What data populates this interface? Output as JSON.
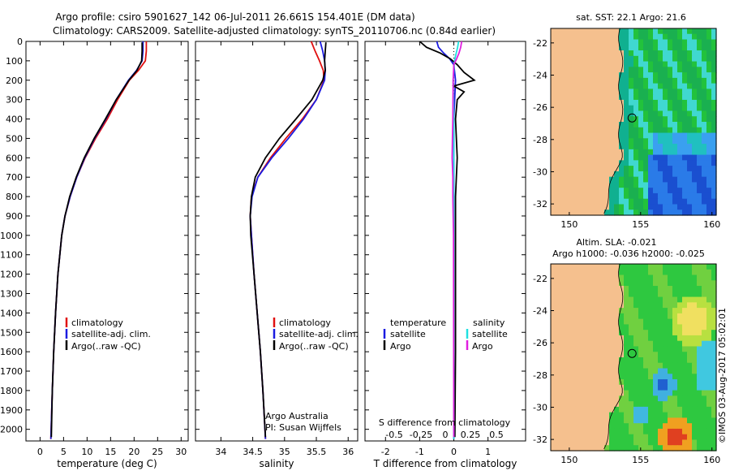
{
  "header": {
    "line1": "Argo profile: csiro 5901627_142 06-Jul-2011 26.661S 154.401E (DM data)",
    "line2": "Climatology: CARS2009. Satellite-adjusted climatology: synTS_20110706.nc (0.84d earlier)"
  },
  "credit": {
    "line1": "Argo Australia",
    "line2": "PI: Susan Wijffels",
    "stamp": "©IMOS 03-Aug-2017 05:02:01"
  },
  "colors": {
    "clim": "#e01010",
    "sat": "#1a1ae0",
    "argo": "#000000",
    "sat_s": "#20e0e0",
    "argo_s": "#e020e0",
    "land": "#f5c08e"
  },
  "chart_data": [
    {
      "type": "line",
      "id": "temperature",
      "xlabel": "temperature (deg C)",
      "ylabel": "",
      "xlim": [
        -3,
        31.5
      ],
      "ylim": [
        2060,
        0
      ],
      "xticks": [
        0,
        5,
        10,
        15,
        20,
        25,
        30
      ],
      "yticks": [
        0,
        100,
        200,
        300,
        400,
        500,
        600,
        700,
        800,
        900,
        1000,
        1100,
        1200,
        1300,
        1400,
        1500,
        1600,
        1700,
        1800,
        1900,
        2000
      ],
      "legend": [
        "climatology",
        "satellite-adj. clim.",
        "Argo(..raw -QC)"
      ],
      "series": [
        {
          "name": "climatology",
          "color": "clim",
          "depth": [
            0,
            50,
            100,
            150,
            200,
            300,
            400,
            500,
            600,
            700,
            800,
            900,
            1000,
            1200,
            1400,
            1600,
            1800,
            2050
          ],
          "values": [
            22.6,
            22.6,
            22.4,
            20.9,
            19.0,
            16.5,
            14.3,
            11.8,
            9.6,
            7.8,
            6.4,
            5.3,
            4.6,
            3.8,
            3.3,
            2.9,
            2.6,
            2.3
          ]
        },
        {
          "name": "satellite-adj. clim.",
          "color": "sat",
          "depth": [
            0,
            50,
            100,
            150,
            200,
            300,
            400,
            500,
            600,
            700,
            800,
            900,
            1000,
            1200,
            1400,
            1600,
            1800,
            2050
          ],
          "values": [
            21.9,
            21.9,
            21.7,
            20.5,
            18.8,
            16.2,
            14.0,
            11.6,
            9.5,
            7.8,
            6.4,
            5.3,
            4.6,
            3.8,
            3.3,
            2.9,
            2.6,
            2.3
          ]
        },
        {
          "name": "Argo",
          "color": "argo",
          "depth": [
            5,
            50,
            100,
            150,
            200,
            300,
            400,
            500,
            600,
            700,
            800,
            900,
            1000,
            1200,
            1400,
            1600,
            1800,
            2040
          ],
          "values": [
            21.7,
            21.7,
            21.6,
            20.6,
            18.9,
            16.2,
            13.9,
            11.5,
            9.4,
            7.7,
            6.3,
            5.3,
            4.6,
            3.8,
            3.3,
            2.9,
            2.6,
            2.4
          ]
        }
      ]
    },
    {
      "type": "line",
      "id": "salinity",
      "xlabel": "salinity",
      "xlim": [
        33.6,
        36.15
      ],
      "ylim": [
        2060,
        0
      ],
      "xticks": [
        34,
        34.5,
        35,
        35.5,
        36
      ],
      "legend": [
        "climatology",
        "satellite-adj. clim.",
        "Argo(..raw -QC)"
      ],
      "series": [
        {
          "name": "climatology",
          "color": "clim",
          "depth": [
            0,
            50,
            100,
            150,
            200,
            300,
            400,
            500,
            600,
            700,
            800,
            900,
            1000,
            1200,
            1400,
            1600,
            1800,
            2050
          ],
          "values": [
            35.42,
            35.48,
            35.55,
            35.61,
            35.62,
            35.5,
            35.28,
            35.02,
            34.78,
            34.58,
            34.48,
            34.46,
            34.48,
            34.52,
            34.57,
            34.62,
            34.66,
            34.7
          ]
        },
        {
          "name": "satellite-adj. clim.",
          "color": "sat",
          "depth": [
            0,
            50,
            100,
            150,
            200,
            300,
            400,
            500,
            600,
            700,
            800,
            900,
            1000,
            1200,
            1400,
            1600,
            1800,
            2050
          ],
          "values": [
            35.56,
            35.6,
            35.63,
            35.64,
            35.63,
            35.5,
            35.3,
            35.06,
            34.8,
            34.58,
            34.49,
            34.46,
            34.48,
            34.52,
            34.57,
            34.62,
            34.66,
            34.7
          ]
        },
        {
          "name": "Argo",
          "color": "argo",
          "depth": [
            5,
            50,
            100,
            150,
            200,
            300,
            400,
            500,
            600,
            700,
            800,
            900,
            1000,
            1200,
            1400,
            1600,
            1800,
            2040
          ],
          "values": [
            35.65,
            35.64,
            35.63,
            35.64,
            35.6,
            35.43,
            35.18,
            34.92,
            34.7,
            34.54,
            34.48,
            34.46,
            34.47,
            34.52,
            34.57,
            34.62,
            34.66,
            34.7
          ]
        }
      ]
    },
    {
      "type": "line",
      "id": "difference",
      "xlabel": "T difference from climatology",
      "top_label": "S difference from climatology",
      "xlim": [
        -2.6,
        2.1
      ],
      "ylim": [
        2060,
        0
      ],
      "xticks": [
        -2,
        -1,
        0,
        1
      ],
      "top_ticks": [
        "-0.5",
        "-0.25",
        "0",
        "0.25",
        "0.5"
      ],
      "legend_titles": [
        "temperature",
        "salinity"
      ],
      "legend": [
        "satellite",
        "Argo",
        "satellite",
        "Argo"
      ],
      "series": [
        {
          "name": "T satellite",
          "color": "sat",
          "depth": [
            0,
            30,
            60,
            90,
            120,
            200,
            400,
            800,
            1200,
            1600,
            2050
          ],
          "values": [
            -0.5,
            -0.45,
            -0.3,
            -0.12,
            0.0,
            0.05,
            0.0,
            0.0,
            0.0,
            0.0,
            0.0
          ]
        },
        {
          "name": "T Argo",
          "color": "argo",
          "depth": [
            0,
            30,
            60,
            90,
            120,
            160,
            200,
            230,
            260,
            300,
            400,
            600,
            800,
            1200,
            1600,
            2040
          ],
          "values": [
            -1.0,
            -0.8,
            -0.4,
            -0.1,
            0.1,
            0.3,
            0.6,
            0.0,
            0.3,
            0.1,
            0.05,
            0.1,
            0.05,
            0.05,
            0.05,
            0.03
          ]
        },
        {
          "name": "S satellite",
          "color": "sat_s",
          "depth": [
            0,
            30,
            60,
            90,
            120,
            200,
            400,
            800,
            1200,
            1600,
            2050
          ],
          "values": [
            0.14,
            0.11,
            0.07,
            0.03,
            0.01,
            -0.02,
            0.0,
            0.0,
            0.0,
            0.0,
            0.0
          ]
        },
        {
          "name": "S Argo",
          "color": "argo_s",
          "depth": [
            0,
            30,
            60,
            90,
            120,
            200,
            400,
            500,
            600,
            700,
            800,
            900,
            1000,
            2040
          ],
          "values": [
            0.23,
            0.2,
            0.15,
            0.08,
            0.0,
            -0.02,
            -0.03,
            -0.04,
            -0.05,
            -0.03,
            -0.03,
            -0.02,
            -0.01,
            0.0
          ]
        }
      ]
    },
    {
      "type": "heatmap",
      "id": "sst_map",
      "title": "sat. SST: 22.1 Argo: 21.6",
      "xlim": [
        148.7,
        160.3
      ],
      "ylim": [
        -32.7,
        -21.1
      ],
      "xticks": [
        150,
        155,
        160
      ],
      "yticks": [
        -22,
        -24,
        -26,
        -28,
        -30,
        -32
      ],
      "marker": {
        "lon": 154.4,
        "lat": -26.66
      }
    },
    {
      "type": "heatmap",
      "id": "sla_map",
      "title": "Altim. SLA: -0.021",
      "subtitle": "Argo h1000: -0.036 h2000: -0.025",
      "xlim": [
        148.7,
        160.3
      ],
      "ylim": [
        -32.7,
        -21.1
      ],
      "xticks": [
        150,
        155,
        160
      ],
      "yticks": [
        -22,
        -24,
        -26,
        -28,
        -30,
        -32
      ],
      "marker": {
        "lon": 154.4,
        "lat": -26.66
      }
    }
  ]
}
